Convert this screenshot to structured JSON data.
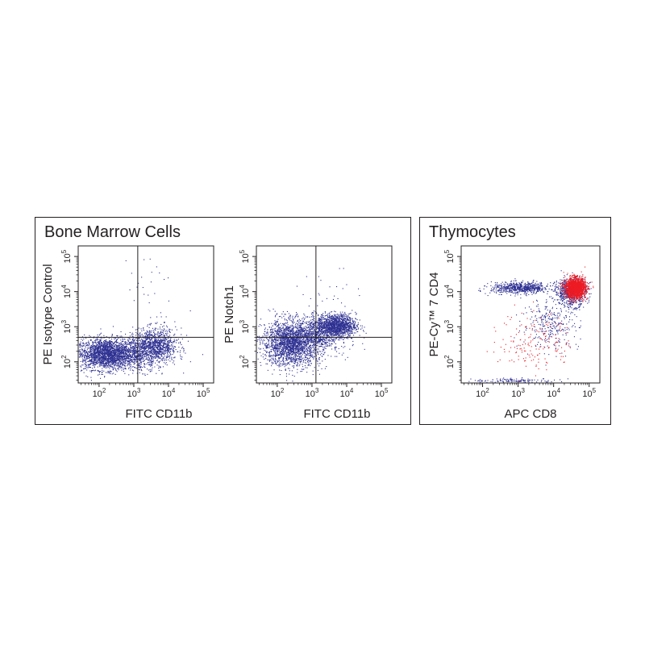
{
  "panels": {
    "bone_marrow": {
      "title": "Bone Marrow Cells"
    },
    "thymocytes": {
      "title": "Thymocytes"
    }
  },
  "chart_data": [
    {
      "type": "scatter",
      "group": "Bone Marrow Cells",
      "xlabel": "FITC  CD11b",
      "ylabel": "PE  Isotype Control",
      "xscale": "log",
      "yscale": "log",
      "xlim": [
        25,
        200000
      ],
      "ylim": [
        25,
        200000
      ],
      "x_ticks": [
        "10^2",
        "10^3",
        "10^4",
        "10^5"
      ],
      "y_ticks": [
        "10^2",
        "10^3",
        "10^4",
        "10^5"
      ],
      "quadrant_gate": {
        "x": 1300,
        "y": 500
      },
      "dot_color": "#2e3192",
      "populations": [
        {
          "color": "#2e3192",
          "count": 2400,
          "cx": 170,
          "cy": 170,
          "sx": 0.45,
          "sy": 0.22
        },
        {
          "color": "#2e3192",
          "count": 1100,
          "cx": 4000,
          "cy": 280,
          "sx": 0.32,
          "sy": 0.25
        },
        {
          "color": "#2e3192",
          "count": 220,
          "cx": 1500,
          "cy": 170,
          "sx": 0.25,
          "sy": 0.25
        },
        {
          "color": "#2e3192",
          "count": 22,
          "cx": 2500,
          "cy": 20000,
          "sx": 0.4,
          "sy": 0.45
        },
        {
          "color": "#2e3192",
          "count": 18,
          "cx": 10000,
          "cy": 1000,
          "sx": 0.35,
          "sy": 0.25
        }
      ]
    },
    {
      "type": "scatter",
      "group": "Bone Marrow Cells",
      "xlabel": "FITC  CD11b",
      "ylabel": "PE  Notch1",
      "xscale": "log",
      "yscale": "log",
      "xlim": [
        25,
        200000
      ],
      "ylim": [
        25,
        200000
      ],
      "x_ticks": [
        "10^2",
        "10^3",
        "10^4",
        "10^5"
      ],
      "y_ticks": [
        "10^2",
        "10^3",
        "10^4",
        "10^5"
      ],
      "quadrant_gate": {
        "x": 1300,
        "y": 500
      },
      "dot_color": "#2e3192",
      "populations": [
        {
          "color": "#2e3192",
          "count": 2300,
          "cx": 250,
          "cy": 350,
          "sx": 0.42,
          "sy": 0.32
        },
        {
          "color": "#2e3192",
          "count": 1300,
          "cx": 5000,
          "cy": 1100,
          "sx": 0.28,
          "sy": 0.16
        },
        {
          "color": "#2e3192",
          "count": 500,
          "cx": 1500,
          "cy": 700,
          "sx": 0.3,
          "sy": 0.25
        },
        {
          "color": "#2e3192",
          "count": 60,
          "cx": 4000,
          "cy": 400,
          "sx": 0.35,
          "sy": 0.4
        },
        {
          "color": "#2e3192",
          "count": 25,
          "cx": 3000,
          "cy": 8000,
          "sx": 0.5,
          "sy": 0.4
        }
      ]
    },
    {
      "type": "scatter",
      "group": "Thymocytes",
      "xlabel": "APC  CD8",
      "ylabel": "PE-Cy™ 7  CD4",
      "xscale": "log",
      "yscale": "log",
      "xlim": [
        25,
        200000
      ],
      "ylim": [
        25,
        200000
      ],
      "x_ticks": [
        "10^2",
        "10^3",
        "10^4",
        "10^5"
      ],
      "y_ticks": [
        "10^2",
        "10^3",
        "10^4",
        "10^5"
      ],
      "series_colors": [
        "#2e3192",
        "#ed1c24"
      ],
      "populations": [
        {
          "color": "#2e3192",
          "count": 700,
          "cx": 1200,
          "cy": 13000,
          "sx": 0.42,
          "sy": 0.08
        },
        {
          "color": "#2e3192",
          "count": 700,
          "cx": 30000,
          "cy": 10000,
          "sx": 0.22,
          "sy": 0.2
        },
        {
          "color": "#2e3192",
          "count": 300,
          "cx": 8000,
          "cy": 1200,
          "sx": 0.4,
          "sy": 0.35
        },
        {
          "color": "#2e3192",
          "count": 120,
          "cx": 800,
          "cy": 30,
          "sx": 0.6,
          "sy": 0.03
        },
        {
          "color": "#ed1c24",
          "count": 1700,
          "cx": 40000,
          "cy": 13000,
          "sx": 0.14,
          "sy": 0.14
        },
        {
          "color": "#ed1c24",
          "count": 170,
          "cx": 3000,
          "cy": 400,
          "sx": 0.5,
          "sy": 0.45
        }
      ]
    }
  ]
}
